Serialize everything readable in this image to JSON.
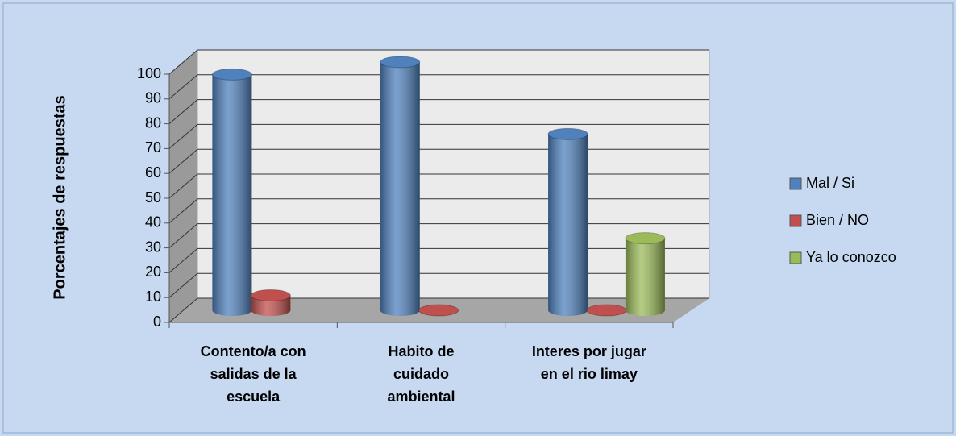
{
  "chart_data": {
    "type": "bar3d",
    "y_label": "Porcentajes de respuestas",
    "categories": [
      "Contento/a con\nsalidas de la\nescuela",
      "Habito de\ncuidado\nambiental",
      "Interes por jugar\nen el rio limay"
    ],
    "series": [
      {
        "name": "Mal / Si",
        "color": "#4f81bd",
        "values": [
          95,
          100,
          71
        ]
      },
      {
        "name": "Bien / NO",
        "color": "#c0504d",
        "values": [
          6,
          0,
          0
        ]
      },
      {
        "name": "Ya lo conozco",
        "color": "#9bbb59",
        "values": [
          null,
          null,
          29
        ]
      }
    ],
    "ylim": [
      0,
      100
    ],
    "yticks": [
      0,
      10,
      20,
      30,
      40,
      50,
      60,
      70,
      80,
      90,
      100
    ],
    "grid": true,
    "legend": "right"
  }
}
